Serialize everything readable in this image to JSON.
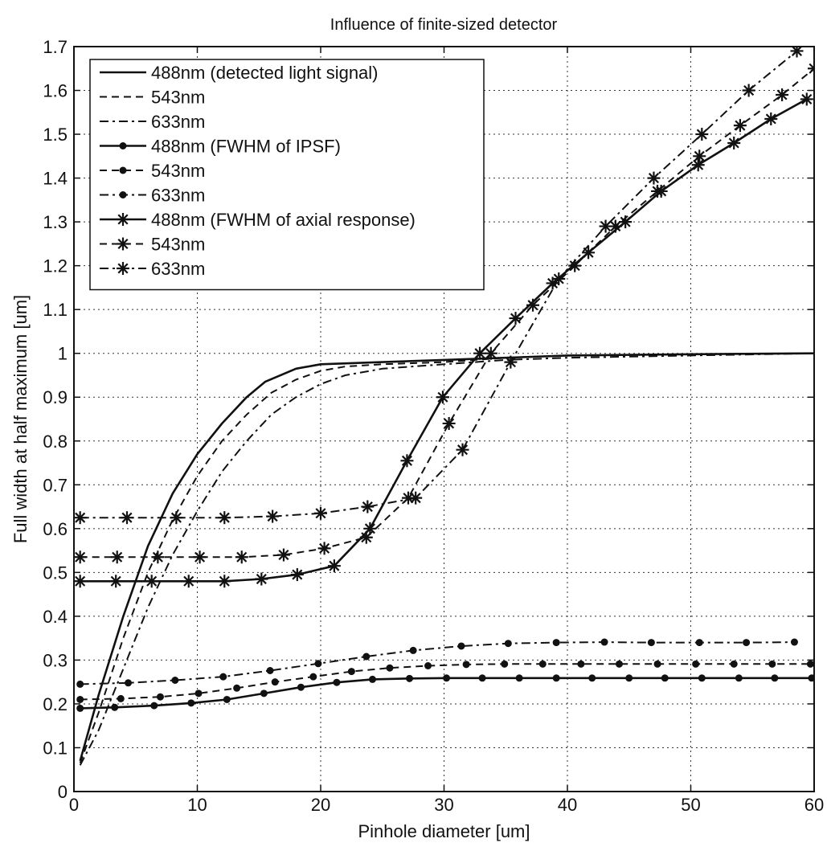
{
  "chart_data": {
    "type": "line",
    "title": "Influence of finite-sized detector",
    "xlabel": "Pinhole diameter [um]",
    "ylabel": "Full width at half maximum [um]",
    "xlim": [
      0,
      60
    ],
    "ylim": [
      0,
      1.7
    ],
    "x_ticks": [
      0,
      10,
      20,
      30,
      40,
      50,
      60
    ],
    "y_ticks": [
      0,
      0.1,
      0.2,
      0.3,
      0.4,
      0.5,
      0.6,
      0.7,
      0.8,
      0.9,
      1,
      1.1,
      1.2,
      1.3,
      1.4,
      1.5,
      1.6,
      1.7
    ],
    "x_tick_labels": [
      "0",
      "10",
      "20",
      "30",
      "40",
      "50",
      "60"
    ],
    "y_tick_labels": [
      "0",
      "0.1",
      "0.2",
      "0.3",
      "0.4",
      "0.5",
      "0.6",
      "0.7",
      "0.8",
      "0.9",
      "1",
      "1.1",
      "1.2",
      "1.3",
      "1.4",
      "1.5",
      "1.6",
      "1.7"
    ],
    "grid": true,
    "legend_position": "top-left",
    "series": [
      {
        "name": "488nm (detected light signal)",
        "line_style": "solid",
        "marker": "none",
        "color": "#111111",
        "x": [
          0.5,
          2,
          4,
          6,
          8,
          10,
          12,
          14,
          15.5,
          18,
          20,
          25,
          30,
          35,
          40,
          50,
          60
        ],
        "y": [
          0.07,
          0.22,
          0.4,
          0.56,
          0.68,
          0.77,
          0.84,
          0.9,
          0.935,
          0.965,
          0.975,
          0.98,
          0.985,
          0.99,
          0.995,
          0.998,
          1.0
        ]
      },
      {
        "name": "543nm",
        "line_style": "dashed",
        "marker": "none",
        "color": "#111111",
        "x": [
          0.5,
          2,
          4,
          6,
          8,
          10,
          12,
          14,
          16,
          18,
          20,
          22,
          25,
          30,
          35,
          40,
          50,
          60
        ],
        "y": [
          0.065,
          0.18,
          0.35,
          0.5,
          0.62,
          0.72,
          0.8,
          0.86,
          0.91,
          0.94,
          0.96,
          0.97,
          0.975,
          0.98,
          0.99,
          0.995,
          0.998,
          1.0
        ]
      },
      {
        "name": "633nm",
        "line_style": "dashdot",
        "marker": "none",
        "color": "#111111",
        "x": [
          0.5,
          2,
          4,
          6,
          8,
          10,
          12,
          14,
          16,
          18,
          20,
          22,
          25,
          30,
          35,
          40,
          50,
          60
        ],
        "y": [
          0.06,
          0.14,
          0.28,
          0.42,
          0.54,
          0.64,
          0.73,
          0.8,
          0.86,
          0.9,
          0.93,
          0.95,
          0.965,
          0.975,
          0.985,
          0.99,
          0.995,
          1.0
        ]
      },
      {
        "name": "488nm (FWHM of IPSF)",
        "line_style": "solid",
        "marker": "dot",
        "color": "#111111",
        "x": [
          0.5,
          3.3,
          6.5,
          9.5,
          12.4,
          15.4,
          18.4,
          21.3,
          24.2,
          27.2,
          30.2,
          33.1,
          36.1,
          39.1,
          42.0,
          45.0,
          47.9,
          50.9,
          53.9,
          56.8,
          59.8
        ],
        "y": [
          0.19,
          0.192,
          0.196,
          0.202,
          0.21,
          0.224,
          0.238,
          0.249,
          0.256,
          0.258,
          0.259,
          0.259,
          0.259,
          0.259,
          0.259,
          0.259,
          0.259,
          0.259,
          0.259,
          0.259,
          0.259
        ]
      },
      {
        "name": "543nm",
        "line_style": "dashed",
        "marker": "dot",
        "color": "#111111",
        "x": [
          0.5,
          3.8,
          7.0,
          10.1,
          13.2,
          16.3,
          19.4,
          22.5,
          25.6,
          28.7,
          31.8,
          34.9,
          38.0,
          41.1,
          44.2,
          47.3,
          50.4,
          53.5,
          56.6,
          59.7
        ],
        "y": [
          0.21,
          0.212,
          0.216,
          0.224,
          0.236,
          0.25,
          0.262,
          0.274,
          0.282,
          0.287,
          0.29,
          0.291,
          0.291,
          0.291,
          0.291,
          0.291,
          0.291,
          0.291,
          0.291,
          0.291
        ]
      },
      {
        "name": "633nm",
        "line_style": "dashdot",
        "marker": "dot",
        "color": "#111111",
        "x": [
          0.5,
          4.4,
          8.2,
          12.1,
          15.9,
          19.8,
          23.7,
          27.5,
          31.4,
          35.2,
          39.1,
          43.0,
          46.8,
          50.7,
          54.5,
          58.4
        ],
        "y": [
          0.245,
          0.248,
          0.254,
          0.262,
          0.276,
          0.292,
          0.308,
          0.322,
          0.332,
          0.338,
          0.34,
          0.341,
          0.34,
          0.34,
          0.34,
          0.341
        ]
      },
      {
        "name": "488nm (FWHM of axial response)",
        "line_style": "solid",
        "marker": "star",
        "color": "#111111",
        "x": [
          0.5,
          3.4,
          6.3,
          9.3,
          12.2,
          15.2,
          18.1,
          21.1,
          24.0,
          27.0,
          29.9,
          32.9,
          35.8,
          38.8,
          41.7,
          44.7,
          47.6,
          50.6,
          53.5,
          56.5,
          59.4
        ],
        "y": [
          0.48,
          0.48,
          0.48,
          0.48,
          0.48,
          0.485,
          0.495,
          0.515,
          0.6,
          0.755,
          0.9,
          1.0,
          1.08,
          1.16,
          1.23,
          1.3,
          1.37,
          1.43,
          1.48,
          1.535,
          1.58
        ]
      },
      {
        "name": "543nm",
        "line_style": "dashed",
        "marker": "star",
        "color": "#111111",
        "x": [
          0.5,
          3.5,
          6.8,
          10.2,
          13.6,
          17.0,
          20.3,
          23.7,
          27.1,
          30.4,
          33.8,
          37.2,
          40.6,
          43.9,
          47.3,
          50.7,
          54.0,
          57.4,
          60.0
        ],
        "y": [
          0.535,
          0.535,
          0.535,
          0.535,
          0.535,
          0.54,
          0.555,
          0.58,
          0.67,
          0.84,
          1.0,
          1.11,
          1.2,
          1.29,
          1.37,
          1.45,
          1.52,
          1.59,
          1.65
        ]
      },
      {
        "name": "633nm",
        "line_style": "dashdot",
        "marker": "star",
        "color": "#111111",
        "x": [
          0.5,
          4.3,
          8.3,
          12.2,
          16.1,
          20.0,
          23.8,
          27.7,
          31.5,
          35.4,
          39.3,
          43.1,
          47.0,
          50.9,
          54.7,
          58.6
        ],
        "y": [
          0.625,
          0.625,
          0.625,
          0.625,
          0.628,
          0.635,
          0.65,
          0.67,
          0.78,
          0.98,
          1.17,
          1.29,
          1.4,
          1.5,
          1.6,
          1.69
        ]
      }
    ]
  }
}
